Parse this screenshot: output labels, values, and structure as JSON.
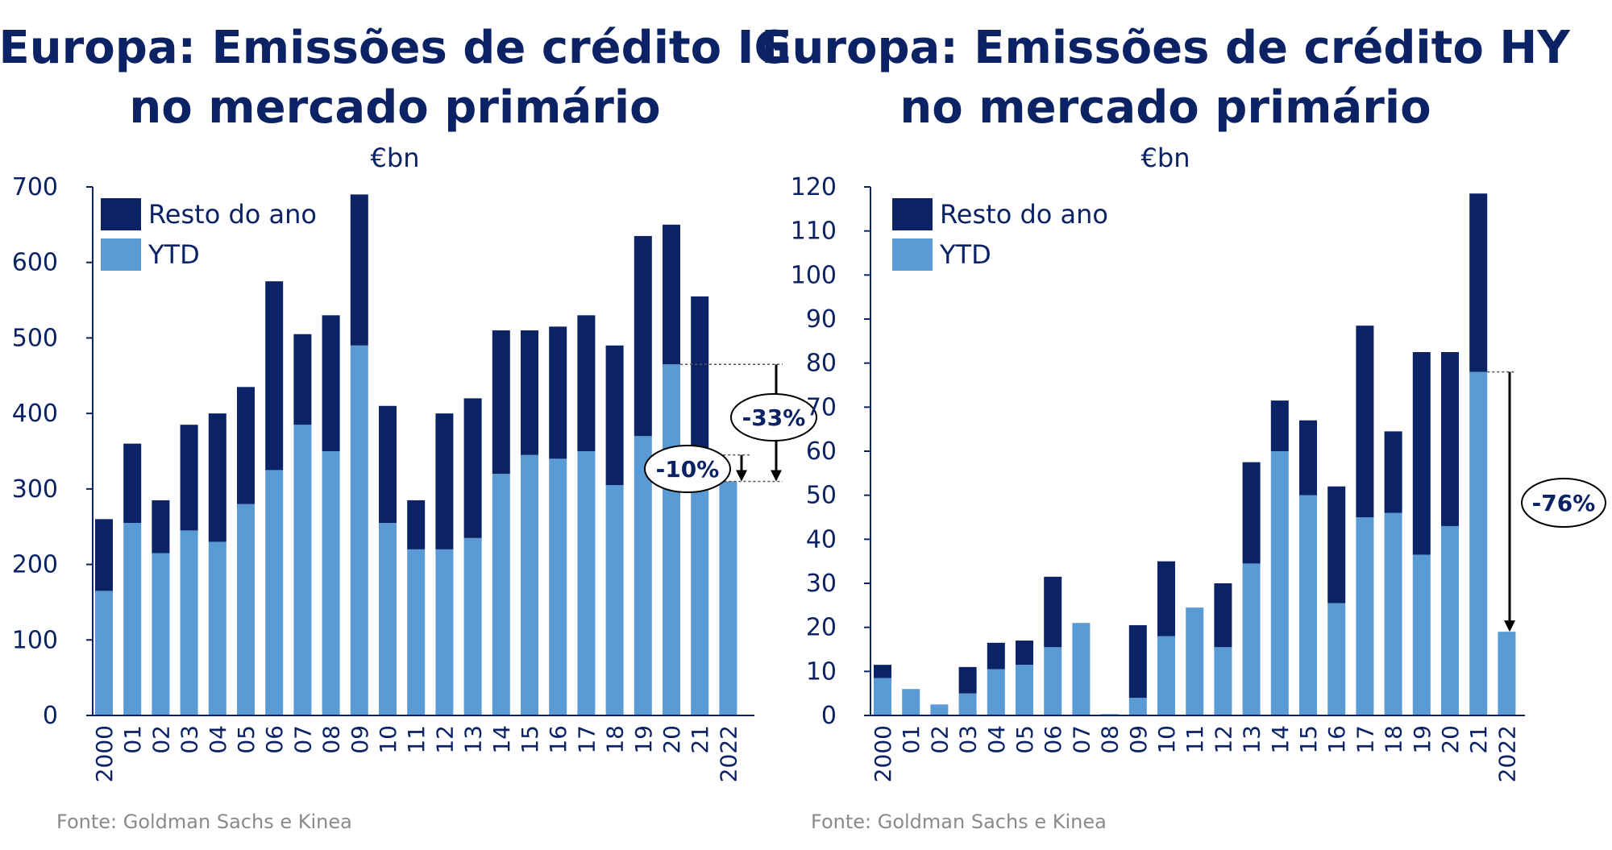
{
  "colors": {
    "rest": "#0b2265",
    "ytd": "#5b9bd5",
    "text": "#0b2265",
    "source": "#8a8a8a"
  },
  "chart_data": [
    {
      "type": "bar",
      "stacked": true,
      "title_line1": "Europa: Emissões de crédito IG",
      "title_line2": "no mercado primário",
      "unit": "€bn",
      "categories": [
        "2000",
        "01",
        "02",
        "03",
        "04",
        "05",
        "06",
        "07",
        "08",
        "09",
        "10",
        "11",
        "12",
        "13",
        "14",
        "15",
        "16",
        "17",
        "18",
        "19",
        "20",
        "21",
        "2022"
      ],
      "series": [
        {
          "name": "YTD",
          "values": [
            165,
            255,
            215,
            245,
            230,
            280,
            325,
            385,
            350,
            490,
            255,
            220,
            220,
            235,
            320,
            345,
            340,
            350,
            305,
            370,
            465,
            340,
            310
          ]
        },
        {
          "name": "Resto do ano",
          "values": [
            95,
            105,
            70,
            140,
            170,
            155,
            250,
            120,
            180,
            200,
            155,
            65,
            180,
            185,
            190,
            165,
            175,
            180,
            185,
            265,
            185,
            215,
            0
          ]
        }
      ],
      "ylim": [
        0,
        700
      ],
      "yticks": [
        "0",
        "100",
        "200",
        "300",
        "400",
        "500",
        "600",
        "700"
      ],
      "legend": {
        "rest": "Resto do ano",
        "ytd": "YTD",
        "placement": "top-left"
      },
      "annotations": [
        {
          "label": "-33%",
          "from_value": 465,
          "to_value": 310
        },
        {
          "label": "-10%",
          "from_value": 345,
          "to_value": 310
        }
      ],
      "source": "Fonte: Goldman Sachs e Kinea"
    },
    {
      "type": "bar",
      "stacked": true,
      "title_line1": "Europa: Emissões de crédito HY",
      "title_line2": "no mercado primário",
      "unit": "€bn",
      "categories": [
        "2000",
        "01",
        "02",
        "03",
        "04",
        "05",
        "06",
        "07",
        "08",
        "09",
        "10",
        "11",
        "12",
        "13",
        "14",
        "15",
        "16",
        "17",
        "18",
        "19",
        "20",
        "21",
        "2022"
      ],
      "series": [
        {
          "name": "YTD",
          "values": [
            8.5,
            6,
            2.5,
            5,
            10.5,
            11.5,
            15.5,
            21,
            0.3,
            4,
            18,
            24.5,
            15.5,
            34.5,
            60,
            50,
            25.5,
            45,
            46,
            36.5,
            43,
            78,
            19
          ]
        },
        {
          "name": "Resto do ano",
          "values": [
            3,
            0,
            0,
            6,
            6,
            5.5,
            16,
            0,
            0,
            16.5,
            17,
            0,
            14.5,
            23,
            11.5,
            17,
            26.5,
            43.5,
            18.5,
            46,
            39.5,
            40.5,
            0
          ]
        }
      ],
      "ylim": [
        0,
        120
      ],
      "yticks": [
        "0",
        "10",
        "20",
        "30",
        "40",
        "50",
        "60",
        "70",
        "80",
        "90",
        "100",
        "110",
        "120"
      ],
      "legend": {
        "rest": "Resto do ano",
        "ytd": "YTD",
        "placement": "top-left"
      },
      "annotations": [
        {
          "label": "-76%",
          "from_value": 78,
          "to_value": 19
        }
      ],
      "source": "Fonte: Goldman Sachs e Kinea"
    }
  ]
}
